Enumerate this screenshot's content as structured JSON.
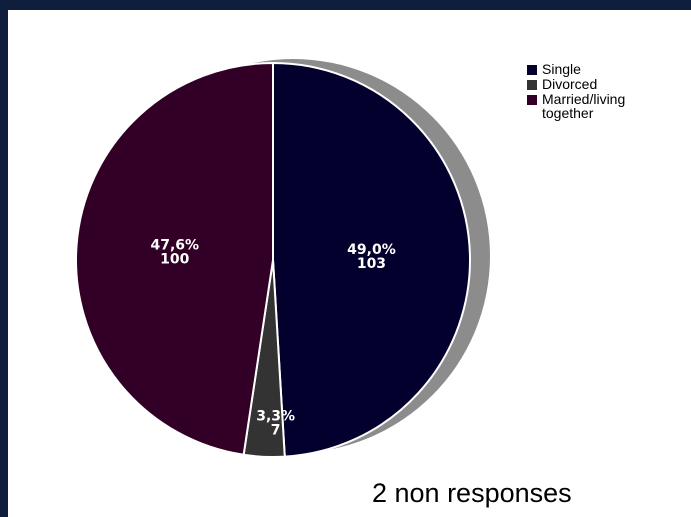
{
  "chart_data": {
    "type": "pie",
    "slices": [
      {
        "name": "Single",
        "percent_label": "49,0%",
        "count_label": "103",
        "value": 103,
        "color": "#03002e"
      },
      {
        "name": "Divorced",
        "percent_label": "3,3%",
        "count_label": "7",
        "value": 7,
        "color": "#333333"
      },
      {
        "name": "Married/living together",
        "percent_label": "47,6%",
        "count_label": "100",
        "value": 100,
        "color": "#320026"
      }
    ],
    "legend_position": "top-right",
    "shadow_color": "#8c8c8c",
    "footnote": "2 non responses"
  },
  "colors": {
    "background": "#0f1e3d",
    "panel": "#ffffff"
  }
}
